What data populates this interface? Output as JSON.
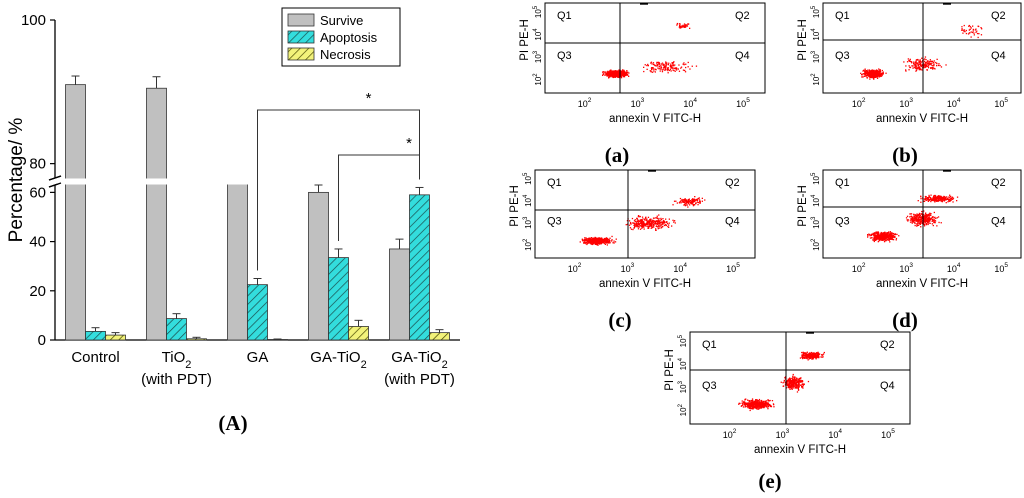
{
  "figure": {
    "panel_A_label": "(A)",
    "flow_panels": [
      {
        "id": "a",
        "label": "(a)"
      },
      {
        "id": "b",
        "label": "(b)"
      },
      {
        "id": "c",
        "label": "(c)"
      },
      {
        "id": "d",
        "label": "(d)"
      },
      {
        "id": "e",
        "label": "(e)"
      }
    ]
  },
  "chart_data": [
    {
      "type": "bar",
      "ylabel": "Percentage/ %",
      "axis_break": [
        63,
        78
      ],
      "ylim": [
        0,
        100
      ],
      "yticks": [
        0,
        20,
        40,
        60,
        80,
        100
      ],
      "categories": [
        {
          "text": "Control",
          "sub": "",
          "suffix": "",
          "line2": ""
        },
        {
          "text": "TiO",
          "sub": "2",
          "suffix": "",
          "line2": "(with PDT)"
        },
        {
          "text": "GA",
          "sub": "",
          "suffix": "",
          "line2": ""
        },
        {
          "text": "GA-TiO",
          "sub": "2",
          "suffix": "",
          "line2": ""
        },
        {
          "text": "GA-TiO",
          "sub": "2",
          "suffix": "",
          "line2": "(with PDT)"
        }
      ],
      "series": [
        {
          "name": "Survive",
          "color": "#c0c0c0",
          "pattern": "solid",
          "values": [
            91,
            90.5,
            73,
            60,
            37
          ],
          "errors": [
            1.2,
            1.6,
            2.2,
            3,
            4
          ]
        },
        {
          "name": "Apoptosis",
          "color": "#33dddd",
          "pattern": "hatch",
          "values": [
            3.5,
            8.7,
            22.5,
            33.5,
            59
          ],
          "errors": [
            1.5,
            2,
            2.5,
            3.5,
            3
          ]
        },
        {
          "name": "Necrosis",
          "color": "#f2f27a",
          "pattern": "hatch",
          "values": [
            2,
            0.5,
            0.2,
            5.5,
            3
          ],
          "errors": [
            1,
            0.6,
            0.2,
            2.5,
            1.2
          ]
        }
      ],
      "legend_position": "top-right",
      "significance": [
        {
          "from_category": 2,
          "to_category": 4,
          "label": "*"
        },
        {
          "from_category": 3,
          "to_category": 4,
          "label": "*"
        }
      ]
    },
    {
      "type": "scatter",
      "panels": [
        "a",
        "b",
        "c",
        "d",
        "e"
      ],
      "xlabel": "annexin V FITC-H",
      "ylabel": "PI PE-H",
      "scale": "log",
      "xticks": [
        "10",
        "10",
        "10",
        "10"
      ],
      "xtick_exponents": [
        "2",
        "3",
        "4",
        "5"
      ],
      "yticks": [
        "10",
        "10",
        "10",
        "10"
      ],
      "ytick_exponents": [
        "2",
        "3",
        "4",
        "5"
      ],
      "quadrants": [
        "Q1",
        "Q2",
        "Q3",
        "Q4"
      ],
      "point_color": "#ff0000"
    }
  ]
}
